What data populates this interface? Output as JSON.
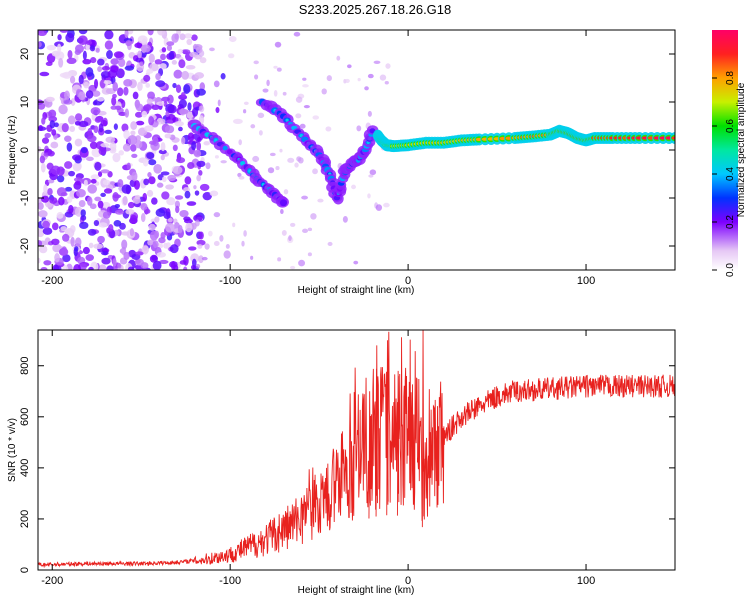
{
  "title": "S233.2025.267.18.26.G18",
  "chart_data": [
    {
      "type": "heatmap",
      "name": "spectrogram",
      "title": "",
      "xlabel": "Height of straight line (km)",
      "ylabel": "Frequency (Hz)",
      "xlim": [
        -208,
        150
      ],
      "ylim": [
        -25,
        25
      ],
      "xticks": [
        -200,
        -100,
        0,
        100
      ],
      "yticks": [
        -20,
        -10,
        0,
        10,
        20
      ],
      "colorbar": {
        "label": "Normalized spectral amplitude",
        "range": [
          0,
          1
        ],
        "ticks": [
          "0.0",
          "0.2",
          "0.4",
          "0.6",
          "0.8"
        ]
      },
      "noise_region": {
        "x_range": [
          -208,
          -115
        ],
        "y_range": [
          -25,
          25
        ],
        "amplitude_range": [
          0.05,
          0.25
        ]
      },
      "features": [
        {
          "name": "upper branch",
          "points": [
            [
              -82,
              10
            ],
            [
              -70,
              7
            ],
            [
              -60,
              3
            ],
            [
              -50,
              -1
            ],
            [
              -44,
              -5
            ],
            [
              -40,
              -10
            ]
          ]
        },
        {
          "name": "lower branch",
          "points": [
            [
              -120,
              5
            ],
            [
              -108,
              2
            ],
            [
              -95,
              -2
            ],
            [
              -85,
              -6
            ],
            [
              -76,
              -9
            ],
            [
              -70,
              -11
            ]
          ]
        },
        {
          "name": "merge segment",
          "points": [
            [
              -40,
              -10
            ],
            [
              -36,
              -5
            ],
            [
              -32,
              -3
            ],
            [
              -28,
              -2
            ],
            [
              -24,
              0
            ],
            [
              -20,
              4
            ]
          ]
        },
        {
          "name": "main line",
          "points": [
            [
              -17,
              3
            ],
            [
              -15,
              2
            ],
            [
              -12,
              1
            ],
            [
              -8,
              0.8
            ],
            [
              0,
              1
            ],
            [
              10,
              1.5
            ],
            [
              20,
              1.5
            ],
            [
              30,
              2
            ],
            [
              40,
              2.2
            ],
            [
              60,
              2.5
            ],
            [
              70,
              2.8
            ],
            [
              80,
              3.2
            ],
            [
              85,
              4
            ],
            [
              90,
              3.5
            ],
            [
              95,
              2.5
            ],
            [
              100,
              2
            ],
            [
              105,
              2.5
            ],
            [
              115,
              2.5
            ],
            [
              130,
              2.5
            ],
            [
              150,
              2.5
            ]
          ]
        }
      ]
    },
    {
      "type": "line",
      "name": "snr",
      "title": "",
      "xlabel": "Height of straight line (km)",
      "ylabel": "SNR (10 * v/v)",
      "xlim": [
        -208,
        150
      ],
      "ylim": [
        0,
        940
      ],
      "xticks": [
        -200,
        -100,
        0,
        100
      ],
      "yticks": [
        0,
        200,
        400,
        600,
        800
      ],
      "color": "#e8211e",
      "series": [
        {
          "name": "SNR",
          "points": [
            [
              -208,
              20
            ],
            [
              -180,
              25
            ],
            [
              -150,
              25
            ],
            [
              -130,
              30
            ],
            [
              -115,
              40
            ],
            [
              -100,
              60
            ],
            [
              -90,
              90
            ],
            [
              -80,
              120
            ],
            [
              -70,
              160
            ],
            [
              -60,
              200
            ],
            [
              -50,
              250
            ],
            [
              -40,
              320
            ],
            [
              -30,
              420
            ],
            [
              -25,
              480
            ],
            [
              -20,
              520
            ],
            [
              -10,
              540
            ],
            [
              0,
              520
            ],
            [
              5,
              480
            ],
            [
              8,
              420
            ],
            [
              10,
              350
            ],
            [
              15,
              430
            ],
            [
              20,
              520
            ],
            [
              30,
              600
            ],
            [
              40,
              640
            ],
            [
              50,
              680
            ],
            [
              60,
              700
            ],
            [
              80,
              710
            ],
            [
              100,
              720
            ],
            [
              120,
              720
            ],
            [
              150,
              720
            ]
          ]
        }
      ],
      "spikes": [
        [
          -18,
          880
        ],
        [
          -12,
          900
        ],
        [
          -6,
          780
        ],
        [
          8,
          940
        ],
        [
          -22,
          700
        ]
      ]
    }
  ]
}
